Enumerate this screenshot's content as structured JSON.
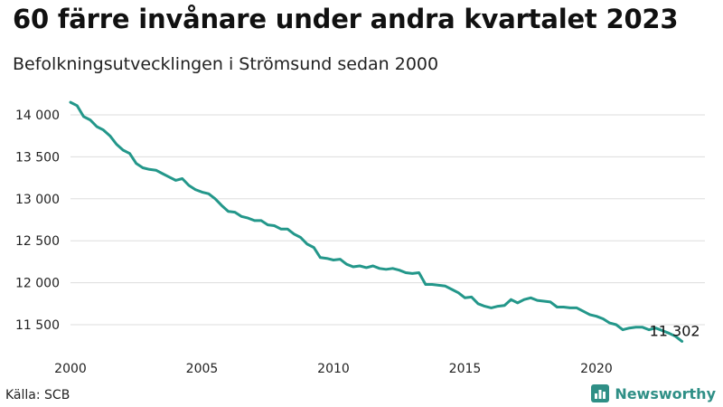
{
  "title": "60 färre invånare under andra kvartalet 2023",
  "subtitle": "Befolkningsutvecklingen i Strömsund sedan 2000",
  "source": "Källa: SCB",
  "brand": {
    "name": "Newsworthy",
    "icon": "newsworthy-logo-icon",
    "color": "#2f8f86"
  },
  "colors": {
    "line": "#23978a",
    "grid": "#dddddd"
  },
  "chart_data": {
    "type": "line",
    "title": "60 färre invånare under andra kvartalet 2023",
    "subtitle": "Befolkningsutvecklingen i Strömsund sedan 2000",
    "xlim": [
      2000,
      2023.25
    ],
    "ylim": [
      11300,
      14200
    ],
    "x_ticks": [
      2000,
      2005,
      2010,
      2015,
      2020
    ],
    "x_tick_labels": [
      "2000",
      "2005",
      "2010",
      "2015",
      "2020"
    ],
    "y_ticks": [
      11500,
      12000,
      12500,
      13000,
      13500,
      14000
    ],
    "y_tick_labels": [
      "11 500",
      "12 000",
      "12 500",
      "13 000",
      "13 500",
      "14 000"
    ],
    "grid": "horizontal",
    "end_label": "11 302",
    "series": [
      {
        "x": [
          2000.0,
          2000.25,
          2000.5,
          2000.75,
          2001.0,
          2001.25,
          2001.5,
          2001.75,
          2002.0,
          2002.25,
          2002.5,
          2002.75,
          2003.0,
          2003.25,
          2003.5,
          2003.75,
          2004.0,
          2004.25,
          2004.5,
          2004.75,
          2005.0,
          2005.25,
          2005.5,
          2005.75,
          2006.0,
          2006.25,
          2006.5,
          2006.75,
          2007.0,
          2007.25,
          2007.5,
          2007.75,
          2008.0,
          2008.25,
          2008.5,
          2008.75,
          2009.0,
          2009.25,
          2009.5,
          2009.75,
          2010.0,
          2010.25,
          2010.5,
          2010.75,
          2011.0,
          2011.25,
          2011.5,
          2011.75,
          2012.0,
          2012.25,
          2012.5,
          2012.75,
          2013.0,
          2013.25,
          2013.5,
          2013.75,
          2014.0,
          2014.25,
          2014.5,
          2014.75,
          2015.0,
          2015.25,
          2015.5,
          2015.75,
          2016.0,
          2016.25,
          2016.5,
          2016.75,
          2017.0,
          2017.25,
          2017.5,
          2017.75,
          2018.0,
          2018.25,
          2018.5,
          2018.75,
          2019.0,
          2019.25,
          2019.5,
          2019.75,
          2020.0,
          2020.25,
          2020.5,
          2020.75,
          2021.0,
          2021.25,
          2021.5,
          2021.75,
          2022.0,
          2022.25,
          2022.5,
          2022.75,
          2023.0,
          2023.25
        ],
        "values": [
          14150,
          14110,
          13980,
          13940,
          13860,
          13820,
          13750,
          13650,
          13580,
          13540,
          13420,
          13370,
          13350,
          13340,
          13300,
          13260,
          13220,
          13240,
          13160,
          13110,
          13080,
          13060,
          13000,
          12920,
          12850,
          12840,
          12790,
          12770,
          12740,
          12740,
          12690,
          12680,
          12640,
          12640,
          12580,
          12540,
          12460,
          12420,
          12300,
          12290,
          12270,
          12280,
          12220,
          12190,
          12200,
          12180,
          12200,
          12170,
          12160,
          12170,
          12150,
          12120,
          12110,
          12120,
          11980,
          11980,
          11970,
          11960,
          11920,
          11880,
          11820,
          11830,
          11750,
          11720,
          11700,
          11720,
          11730,
          11800,
          11760,
          11800,
          11820,
          11790,
          11780,
          11770,
          11710,
          11710,
          11700,
          11700,
          11660,
          11620,
          11600,
          11570,
          11520,
          11500,
          11440,
          11460,
          11470,
          11470,
          11440,
          11460,
          11430,
          11400,
          11362,
          11302
        ]
      }
    ]
  }
}
